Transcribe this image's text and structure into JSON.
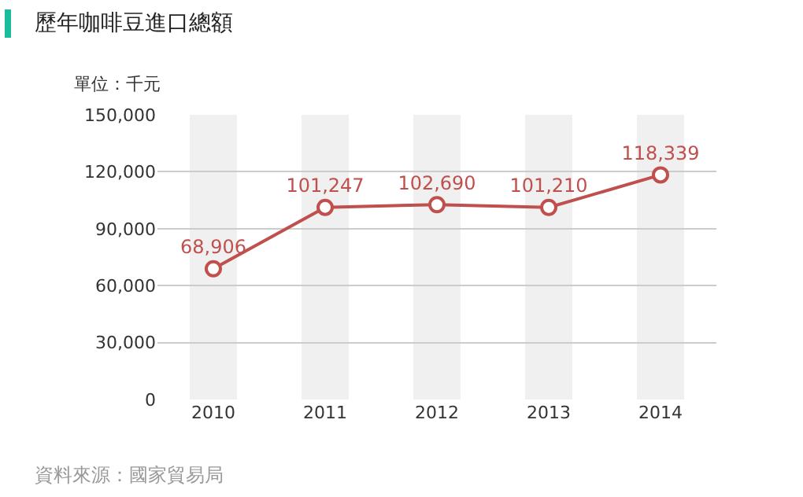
{
  "chart_data": {
    "type": "line",
    "title": "歷年咖啡豆進口總額",
    "ylabel": "單位：千元",
    "categories": [
      "2010",
      "2011",
      "2012",
      "2013",
      "2014"
    ],
    "series": [
      {
        "color": "#c0504d",
        "values": [
          68906,
          101247,
          102690,
          101210,
          118339
        ],
        "value_labels": [
          "68,906",
          "101,247",
          "102,690",
          "101,210",
          "118,339"
        ]
      }
    ],
    "ylim": [
      0,
      150000
    ],
    "yticks": [
      {
        "value": 0,
        "label": "0"
      },
      {
        "value": 30000,
        "label": "30,000"
      },
      {
        "value": 60000,
        "label": "60,000"
      },
      {
        "value": 90000,
        "label": "90,000"
      },
      {
        "value": 120000,
        "label": "120,000"
      },
      {
        "value": 150000,
        "label": "150,000"
      }
    ],
    "grid": true,
    "marker": "circle",
    "line_style": "solid",
    "legend": false,
    "annotations": [
      "資料來源：國家貿易局"
    ]
  }
}
